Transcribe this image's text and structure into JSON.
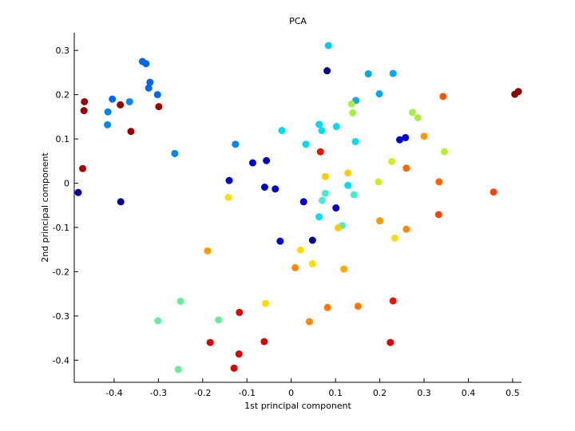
{
  "chart_data": {
    "type": "scatter",
    "title": "PCA",
    "xlabel": "1st principal component",
    "ylabel": "2nd principal component",
    "xlim": [
      -0.49,
      0.52
    ],
    "ylim": [
      -0.45,
      0.34
    ],
    "xticks": [
      -0.4,
      -0.3,
      -0.2,
      -0.1,
      0,
      0.1,
      0.2,
      0.3,
      0.4,
      0.5
    ],
    "xtick_labels": [
      "-0.4",
      "-0.3",
      "-0.2",
      "-0.1",
      "0",
      "0.1",
      "0.2",
      "0.3",
      "0.4",
      "0.5"
    ],
    "yticks": [
      -0.4,
      -0.3,
      -0.2,
      -0.1,
      0,
      0.1,
      0.2,
      0.3
    ],
    "ytick_labels": [
      "-0.4",
      "-0.3",
      "-0.2",
      "-0.1",
      "0",
      "0.1",
      "0.2",
      "0.3"
    ],
    "grid": false,
    "colormap": "jet",
    "points": [
      {
        "x": -0.467,
        "y": 0.184,
        "color": "#990000"
      },
      {
        "x": -0.468,
        "y": 0.164,
        "color": "#990000"
      },
      {
        "x": -0.386,
        "y": 0.177,
        "color": "#990000"
      },
      {
        "x": -0.362,
        "y": 0.117,
        "color": "#990000"
      },
      {
        "x": -0.299,
        "y": 0.173,
        "color": "#990000"
      },
      {
        "x": -0.471,
        "y": 0.033,
        "color": "#aa0000"
      },
      {
        "x": 0.505,
        "y": 0.201,
        "color": "#880000"
      },
      {
        "x": 0.513,
        "y": 0.207,
        "color": "#880000"
      },
      {
        "x": -0.481,
        "y": -0.021,
        "color": "#0000aa"
      },
      {
        "x": -0.385,
        "y": -0.042,
        "color": "#000099"
      },
      {
        "x": -0.336,
        "y": 0.275,
        "color": "#0066ee"
      },
      {
        "x": -0.328,
        "y": 0.27,
        "color": "#0066ee"
      },
      {
        "x": -0.319,
        "y": 0.228,
        "color": "#0066ee"
      },
      {
        "x": -0.322,
        "y": 0.215,
        "color": "#0066ee"
      },
      {
        "x": -0.302,
        "y": 0.2,
        "color": "#0066ee"
      },
      {
        "x": -0.404,
        "y": 0.19,
        "color": "#0066ee"
      },
      {
        "x": -0.365,
        "y": 0.184,
        "color": "#0088ee"
      },
      {
        "x": -0.414,
        "y": 0.161,
        "color": "#0088ee"
      },
      {
        "x": -0.415,
        "y": 0.132,
        "color": "#0088ee"
      },
      {
        "x": -0.263,
        "y": 0.067,
        "color": "#0088ee"
      },
      {
        "x": -0.126,
        "y": 0.088,
        "color": "#0088ee"
      },
      {
        "x": -0.14,
        "y": 0.006,
        "color": "#0000cc"
      },
      {
        "x": -0.087,
        "y": 0.046,
        "color": "#0000cc"
      },
      {
        "x": -0.056,
        "y": 0.051,
        "color": "#0000cc"
      },
      {
        "x": -0.06,
        "y": -0.009,
        "color": "#0000cc"
      },
      {
        "x": -0.036,
        "y": -0.013,
        "color": "#0000cc"
      },
      {
        "x": -0.025,
        "y": -0.131,
        "color": "#0000cc"
      },
      {
        "x": 0.028,
        "y": -0.042,
        "color": "#0000cc"
      },
      {
        "x": 0.048,
        "y": -0.129,
        "color": "#000099"
      },
      {
        "x": 0.101,
        "y": -0.056,
        "color": "#0000cc"
      },
      {
        "x": 0.081,
        "y": 0.254,
        "color": "#000099"
      },
      {
        "x": 0.245,
        "y": 0.098,
        "color": "#0000cc"
      },
      {
        "x": 0.258,
        "y": 0.103,
        "color": "#0000cc"
      },
      {
        "x": 0.084,
        "y": 0.311,
        "color": "#00ccee"
      },
      {
        "x": 0.174,
        "y": 0.247,
        "color": "#00aaee"
      },
      {
        "x": 0.23,
        "y": 0.248,
        "color": "#00aaee"
      },
      {
        "x": 0.199,
        "y": 0.202,
        "color": "#00aaee"
      },
      {
        "x": 0.146,
        "y": 0.187,
        "color": "#00aaee"
      },
      {
        "x": -0.021,
        "y": 0.119,
        "color": "#00ddee"
      },
      {
        "x": 0.033,
        "y": 0.088,
        "color": "#00ddee"
      },
      {
        "x": 0.063,
        "y": 0.133,
        "color": "#00ddee"
      },
      {
        "x": 0.069,
        "y": 0.119,
        "color": "#00ddee"
      },
      {
        "x": 0.102,
        "y": 0.128,
        "color": "#00ddee"
      },
      {
        "x": 0.145,
        "y": 0.094,
        "color": "#00ddee"
      },
      {
        "x": 0.128,
        "y": -0.005,
        "color": "#00ddee"
      },
      {
        "x": 0.063,
        "y": -0.076,
        "color": "#00ddee"
      },
      {
        "x": 0.077,
        "y": -0.023,
        "color": "#44eecc"
      },
      {
        "x": 0.07,
        "y": -0.039,
        "color": "#44eecc"
      },
      {
        "x": 0.142,
        "y": -0.026,
        "color": "#44eecc"
      },
      {
        "x": 0.115,
        "y": -0.096,
        "color": "#44eecc"
      },
      {
        "x": -0.25,
        "y": -0.267,
        "color": "#66ee99"
      },
      {
        "x": -0.301,
        "y": -0.311,
        "color": "#66ee99"
      },
      {
        "x": -0.164,
        "y": -0.309,
        "color": "#66ee99"
      },
      {
        "x": -0.255,
        "y": -0.421,
        "color": "#66ee99"
      },
      {
        "x": 0.136,
        "y": 0.179,
        "color": "#aaee44"
      },
      {
        "x": 0.139,
        "y": 0.159,
        "color": "#aaee44"
      },
      {
        "x": 0.274,
        "y": 0.16,
        "color": "#aaee44"
      },
      {
        "x": 0.286,
        "y": 0.148,
        "color": "#aaee44"
      },
      {
        "x": 0.346,
        "y": 0.071,
        "color": "#bbee33"
      },
      {
        "x": 0.227,
        "y": 0.049,
        "color": "#ccee22"
      },
      {
        "x": 0.197,
        "y": 0.003,
        "color": "#ccee22"
      },
      {
        "x": -0.142,
        "y": -0.032,
        "color": "#ffdd00"
      },
      {
        "x": 0.077,
        "y": 0.015,
        "color": "#ffcc00"
      },
      {
        "x": 0.128,
        "y": 0.023,
        "color": "#ffcc00"
      },
      {
        "x": 0.106,
        "y": -0.101,
        "color": "#ffcc00"
      },
      {
        "x": 0.234,
        "y": -0.124,
        "color": "#ffdd00"
      },
      {
        "x": 0.021,
        "y": -0.151,
        "color": "#ffdd00"
      },
      {
        "x": 0.048,
        "y": -0.182,
        "color": "#ffdd00"
      },
      {
        "x": -0.058,
        "y": -0.272,
        "color": "#ffdd00"
      },
      {
        "x": 0.119,
        "y": -0.194,
        "color": "#ffaa00"
      },
      {
        "x": 0.3,
        "y": 0.106,
        "color": "#ff9900"
      },
      {
        "x": 0.2,
        "y": -0.085,
        "color": "#ff9900"
      },
      {
        "x": 0.26,
        "y": -0.104,
        "color": "#ff8800"
      },
      {
        "x": -0.189,
        "y": -0.153,
        "color": "#ff9900"
      },
      {
        "x": 0.009,
        "y": -0.191,
        "color": "#ff8800"
      },
      {
        "x": 0.041,
        "y": -0.313,
        "color": "#ff8800"
      },
      {
        "x": 0.082,
        "y": -0.281,
        "color": "#ff7700"
      },
      {
        "x": 0.151,
        "y": -0.278,
        "color": "#ff7700"
      },
      {
        "x": 0.26,
        "y": 0.034,
        "color": "#ff6600"
      },
      {
        "x": 0.334,
        "y": 0.003,
        "color": "#ff6600"
      },
      {
        "x": 0.333,
        "y": -0.071,
        "color": "#ff4400"
      },
      {
        "x": 0.343,
        "y": 0.196,
        "color": "#ff5500"
      },
      {
        "x": 0.457,
        "y": -0.02,
        "color": "#ff4400"
      },
      {
        "x": 0.066,
        "y": 0.071,
        "color": "#ee1100"
      },
      {
        "x": -0.117,
        "y": -0.292,
        "color": "#dd0000"
      },
      {
        "x": -0.183,
        "y": -0.36,
        "color": "#dd0000"
      },
      {
        "x": -0.118,
        "y": -0.386,
        "color": "#dd0000"
      },
      {
        "x": -0.129,
        "y": -0.418,
        "color": "#dd0000"
      },
      {
        "x": -0.061,
        "y": -0.358,
        "color": "#dd0000"
      },
      {
        "x": 0.23,
        "y": -0.266,
        "color": "#ee1100"
      },
      {
        "x": 0.224,
        "y": -0.36,
        "color": "#dd0000"
      }
    ]
  }
}
